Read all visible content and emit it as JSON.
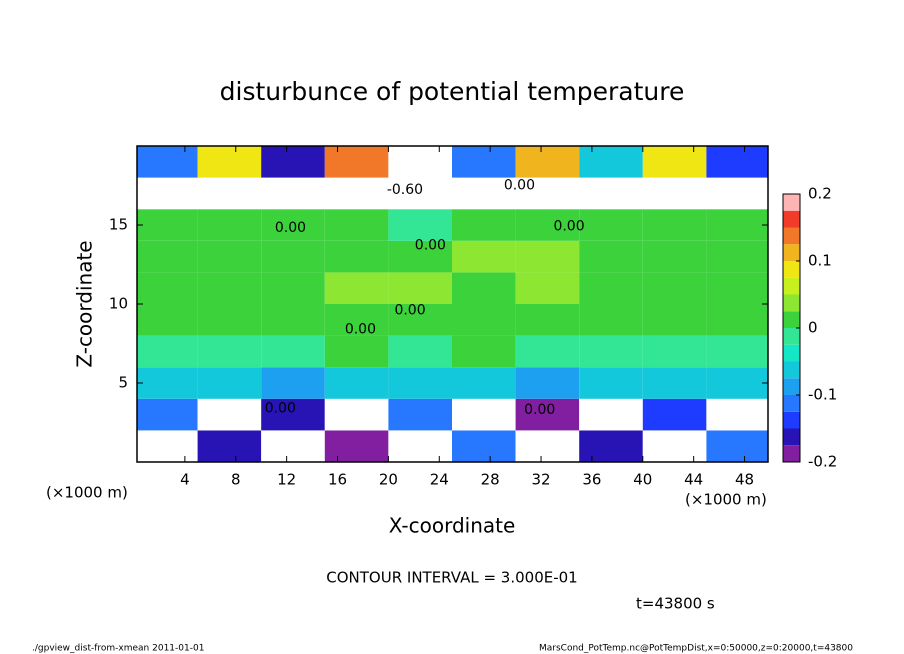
{
  "chart_data": {
    "type": "heatmap",
    "title": "disturbunce of potential temperature",
    "xlabel": "X-coordinate",
    "ylabel": "Z-coordinate",
    "x_unit_label": "(×1000 m)",
    "y_unit_label": "(×1000 m)",
    "xlim": [
      0,
      50
    ],
    "ylim": [
      0,
      20
    ],
    "xticks": [
      4,
      8,
      12,
      16,
      20,
      24,
      28,
      32,
      36,
      40,
      44,
      48
    ],
    "yticks": [
      5,
      10,
      15
    ],
    "x": [
      2.5,
      7.5,
      12.5,
      17.5,
      22.5,
      27.5,
      32.5,
      37.5,
      42.5,
      47.5
    ],
    "y": [
      1,
      3,
      5,
      7,
      9,
      11,
      13,
      15,
      17,
      19
    ],
    "z": [
      [
        0.3,
        -0.15,
        0.3,
        -0.18,
        0.3,
        -0.12,
        0.25,
        -0.16,
        0.3,
        -0.1
      ],
      [
        -0.12,
        0.3,
        -0.15,
        0.3,
        -0.1,
        0.3,
        -0.18,
        0.3,
        -0.14,
        0.3
      ],
      [
        -0.07,
        -0.06,
        -0.08,
        -0.07,
        -0.06,
        -0.07,
        -0.08,
        -0.06,
        -0.07,
        -0.06
      ],
      [
        -0.01,
        -0.02,
        -0.01,
        0.01,
        -0.01,
        0.01,
        -0.01,
        -0.02,
        -0.01,
        -0.02
      ],
      [
        0.01,
        0.01,
        0.01,
        0.01,
        0.02,
        0.02,
        0.01,
        0.01,
        0.01,
        0.01
      ],
      [
        0.01,
        0.01,
        0.01,
        0.03,
        0.03,
        0.02,
        0.03,
        0.01,
        0.01,
        0.01
      ],
      [
        0.01,
        0.01,
        0.01,
        0.01,
        0.02,
        0.04,
        0.03,
        0.01,
        0.01,
        0.01
      ],
      [
        0.01,
        0.01,
        0.01,
        0.01,
        0.0,
        0.01,
        0.01,
        0.01,
        0.01,
        0.01
      ],
      [
        0.3,
        0.3,
        -0.3,
        0.3,
        0.3,
        0.3,
        -0.3,
        0.3,
        0.3,
        0.3
      ],
      [
        -0.1,
        0.1,
        -0.15,
        0.15,
        0.3,
        -0.12,
        0.12,
        -0.05,
        0.1,
        -0.14
      ]
    ],
    "colorbar": {
      "levels": [
        -0.2,
        -0.175,
        -0.15,
        -0.125,
        -0.1,
        -0.075,
        -0.05,
        -0.025,
        0,
        0.025,
        0.05,
        0.075,
        0.1,
        0.125,
        0.15,
        0.175,
        0.2
      ],
      "colors": [
        "#821ea0",
        "#2814b4",
        "#1e3cff",
        "#2878ff",
        "#1ea0f0",
        "#14c8dc",
        "#14e6c8",
        "#32e696",
        "#3cd23c",
        "#8ce632",
        "#c8f01e",
        "#f0e614",
        "#f0b41e",
        "#f07828",
        "#f03c28",
        "#ffb4b4"
      ],
      "out_of_range_color": "#ffffff",
      "ticks": [
        -0.2,
        -0.1,
        0,
        0.1,
        0.2
      ]
    },
    "contour_labels": [
      {
        "text": "-0.60",
        "x": 21.3,
        "y": 17.2
      },
      {
        "text": "0.00",
        "x": 30.3,
        "y": 17.5
      },
      {
        "text": "0.00",
        "x": 12.3,
        "y": 14.8
      },
      {
        "text": "0.00",
        "x": 34.2,
        "y": 14.9
      },
      {
        "text": "0.00",
        "x": 23.3,
        "y": 13.7
      },
      {
        "text": "0.00",
        "x": 21.7,
        "y": 9.6
      },
      {
        "text": "0.00",
        "x": 17.8,
        "y": 8.4
      },
      {
        "text": "0.00",
        "x": 31.9,
        "y": 3.3
      },
      {
        "text": "0.00",
        "x": 11.5,
        "y": 3.4
      }
    ],
    "contour_interval": "CONTOUR INTERVAL = 3.000E-01",
    "time_label": "t=43800 s",
    "footer_left": "./gpview_dist-from-xmean  2011-01-01",
    "footer_right": "MarsCond_PotTemp.nc@PotTempDist,x=0:50000,z=0:20000,t=43800"
  }
}
